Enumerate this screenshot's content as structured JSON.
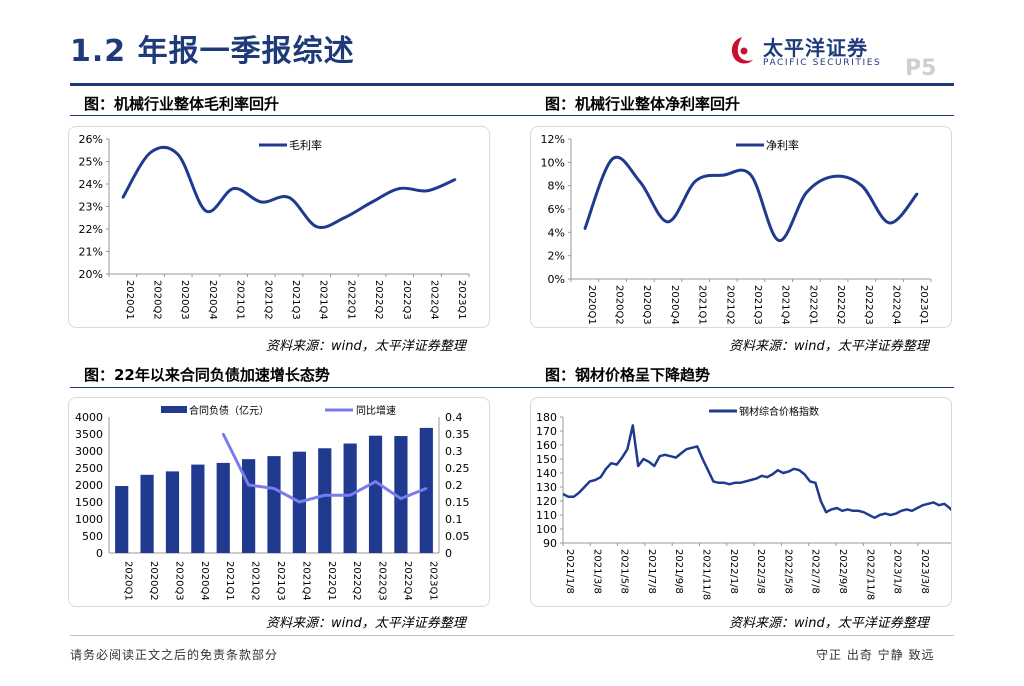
{
  "page": {
    "title": "1.2 年报一季报综述",
    "logo_cn": "太平洋证券",
    "logo_en": "PACIFIC SECURITIES",
    "page_number": "P5",
    "footer_left": "请务必阅读正文之后的免责条款部分",
    "footer_right": "守正 出奇 宁静 致远",
    "accent_color": "#1f3a7a",
    "series_color": "#1f3a8f",
    "line_color": "#7b7bf0"
  },
  "figures": [
    {
      "title": "图：机械行业整体毛利率回升",
      "source": "资料来源：wind，太平洋证券整理"
    },
    {
      "title": "图：机械行业整体净利率回升",
      "source": "资料来源：wind，太平洋证券整理"
    },
    {
      "title": "图：22年以来合同负债加速增长态势",
      "source": "资料来源：wind，太平洋证券整理"
    },
    {
      "title": "图：钢材价格呈下降趋势",
      "source": "资料来源：wind，太平洋证券整理"
    }
  ],
  "chart_data": [
    {
      "type": "line",
      "legend": "毛利率",
      "categories": [
        "2020Q1",
        "2020Q2",
        "2020Q3",
        "2020Q4",
        "2021Q1",
        "2021Q2",
        "2021Q3",
        "2021Q4",
        "2022Q1",
        "2022Q2",
        "2022Q3",
        "2022Q4",
        "2023Q1"
      ],
      "values": [
        23.4,
        25.4,
        25.3,
        22.8,
        23.8,
        23.2,
        23.4,
        22.1,
        22.5,
        23.2,
        23.8,
        23.7,
        24.2
      ],
      "ylim": [
        20,
        26
      ],
      "yticks": [
        20,
        21,
        22,
        23,
        24,
        25,
        26
      ],
      "ytick_labels": [
        "20%",
        "21%",
        "22%",
        "23%",
        "24%",
        "25%",
        "26%"
      ]
    },
    {
      "type": "line",
      "legend": "净利率",
      "categories": [
        "2020Q1",
        "2020Q2",
        "2020Q3",
        "2020Q4",
        "2021Q1",
        "2021Q2",
        "2021Q3",
        "2021Q4",
        "2022Q1",
        "2022Q2",
        "2022Q3",
        "2022Q4",
        "2023Q1"
      ],
      "values": [
        4.3,
        10.3,
        8.3,
        4.9,
        8.4,
        8.9,
        8.9,
        3.3,
        7.4,
        8.8,
        8.0,
        4.8,
        7.3
      ],
      "ylim": [
        0,
        12
      ],
      "yticks": [
        0,
        2,
        4,
        6,
        8,
        10,
        12
      ],
      "ytick_labels": [
        "0%",
        "2%",
        "4%",
        "6%",
        "8%",
        "10%",
        "12%"
      ]
    },
    {
      "type": "bar",
      "categories": [
        "2020Q1",
        "2020Q2",
        "2020Q3",
        "2020Q4",
        "2021Q1",
        "2021Q2",
        "2021Q3",
        "2021Q4",
        "2022Q1",
        "2022Q2",
        "2022Q3",
        "2022Q4",
        "2023Q1"
      ],
      "series": [
        {
          "name": "合同负债（亿元）",
          "type": "bar",
          "axis": "left",
          "values": [
            1970,
            2300,
            2400,
            2600,
            2650,
            2760,
            2850,
            2980,
            3080,
            3220,
            3450,
            3440,
            3680
          ]
        },
        {
          "name": "同比增速",
          "type": "line",
          "axis": "right",
          "values": [
            null,
            null,
            null,
            null,
            0.35,
            0.2,
            0.19,
            0.15,
            0.17,
            0.17,
            0.21,
            0.16,
            0.19
          ]
        }
      ],
      "ylim_left": [
        0,
        4000
      ],
      "yticks_left": [
        "0",
        "500",
        "1000",
        "1500",
        "2000",
        "2500",
        "3000",
        "3500",
        "4000"
      ],
      "ylim_right": [
        0,
        0.4
      ],
      "yticks_right": [
        "0",
        "0.05",
        "0.1",
        "0.15",
        "0.2",
        "0.25",
        "0.3",
        "0.35",
        "0.4"
      ]
    },
    {
      "type": "line",
      "legend": "钢材综合价格指数",
      "xtick_labels": [
        "2021/1/8",
        "2021/3/8",
        "2021/5/8",
        "2021/7/8",
        "2021/9/8",
        "2021/11/8",
        "2022/1/8",
        "2022/3/8",
        "2022/5/8",
        "2022/7/8",
        "2022/9/8",
        "2022/11/8",
        "2023/1/8",
        "2023/3/8"
      ],
      "values": [
        125,
        123,
        123,
        126,
        130,
        134,
        135,
        137,
        143,
        147,
        146,
        151,
        157,
        174,
        145,
        150,
        148,
        145,
        152,
        153,
        152,
        151,
        154,
        157,
        158,
        159,
        150,
        142,
        134,
        133,
        133,
        132,
        133,
        133,
        134,
        135,
        136,
        138,
        137,
        139,
        142,
        140,
        141,
        143,
        142,
        139,
        134,
        133,
        120,
        112,
        114,
        115,
        113,
        114,
        113,
        113,
        112,
        110,
        108,
        110,
        111,
        110,
        111,
        113,
        114,
        113,
        115,
        117,
        118,
        119,
        117,
        118,
        115,
        111
      ],
      "ylim": [
        90,
        180
      ],
      "yticks": [
        "90",
        "100",
        "110",
        "120",
        "130",
        "140",
        "150",
        "160",
        "170",
        "180"
      ]
    }
  ]
}
